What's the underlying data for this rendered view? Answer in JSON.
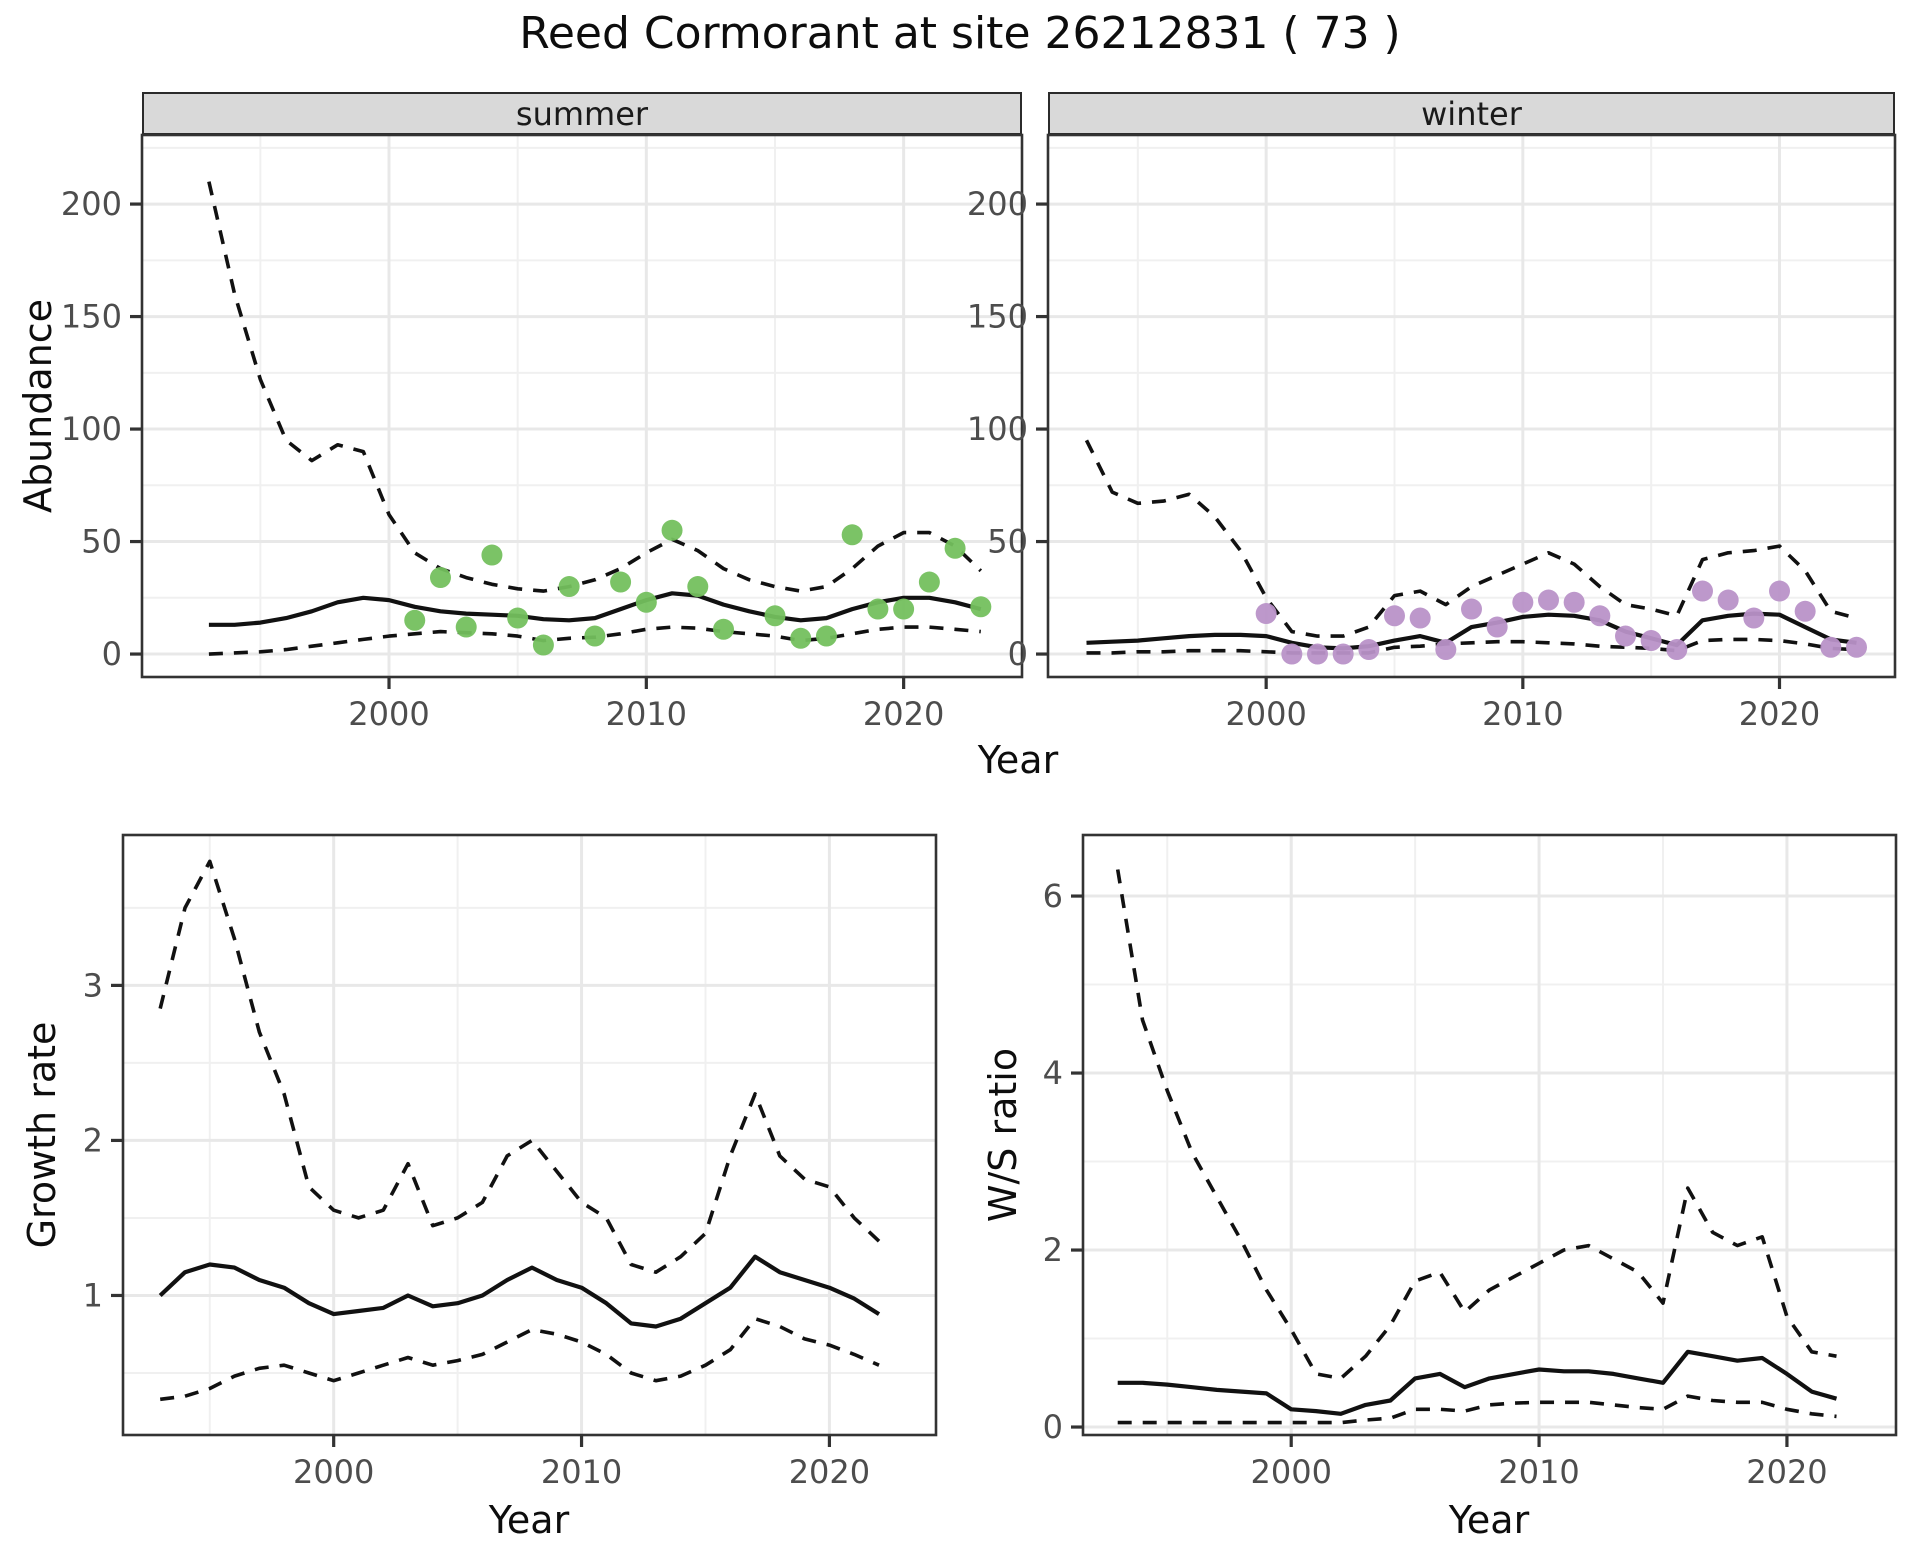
{
  "title": "Reed Cormorant at site 26212831 ( 73 )",
  "colors": {
    "line": "#111111",
    "summer_points": "#74c05e",
    "winter_points": "#b992c8",
    "strip_bg": "#d9d9d9",
    "grid_major": "#e8e8e8",
    "grid_minor": "#f0f0f0",
    "panel_border": "#333333",
    "tick_text": "#4d4d4d"
  },
  "chart_data": [
    {
      "id": "abundance_summer",
      "type": "line",
      "facet": "summer",
      "xlabel": "Year",
      "ylabel": "Abundance",
      "legend": "none",
      "grid": true,
      "xlim": [
        1990.4,
        2024.6
      ],
      "ylim": [
        -10.2,
        230.7
      ],
      "x_ticks": [
        2000,
        2010,
        2020
      ],
      "y_ticks": [
        0,
        50,
        100,
        150,
        200
      ],
      "years": [
        1993,
        1994,
        1995,
        1996,
        1997,
        1998,
        1999,
        2000,
        2001,
        2002,
        2003,
        2004,
        2005,
        2006,
        2007,
        2008,
        2009,
        2010,
        2011,
        2012,
        2013,
        2014,
        2015,
        2016,
        2017,
        2018,
        2019,
        2020,
        2021,
        2022,
        2023
      ],
      "series": [
        {
          "name": "mean",
          "style": "solid",
          "values": [
            13,
            13,
            14,
            16,
            19,
            23,
            25,
            24,
            21,
            19,
            18,
            17.5,
            17,
            15.5,
            15,
            16,
            20,
            24,
            27,
            26,
            22,
            19,
            16.5,
            15,
            16,
            20,
            23,
            25,
            25,
            23,
            20
          ]
        },
        {
          "name": "upper_ci",
          "style": "dashed",
          "values": [
            210,
            160,
            122,
            95,
            86,
            93,
            90,
            62,
            45,
            38,
            34,
            31,
            29,
            28,
            30,
            33,
            38,
            45,
            51,
            46,
            38,
            33,
            30,
            28,
            30,
            38,
            48,
            54,
            54,
            48,
            37
          ]
        },
        {
          "name": "lower_ci",
          "style": "dashed",
          "values": [
            0,
            0.5,
            1,
            2,
            3.5,
            5,
            6.5,
            8,
            9,
            10,
            9.5,
            9,
            8,
            6,
            7,
            7.5,
            9,
            11,
            12,
            11.5,
            10,
            9,
            8,
            6,
            7,
            9,
            11,
            12,
            12,
            11,
            10
          ]
        }
      ],
      "points": {
        "color_key": "summer_points",
        "years": [
          2001,
          2002,
          2003,
          2004,
          2005,
          2006,
          2007,
          2008,
          2009,
          2010,
          2011,
          2012,
          2013,
          2015,
          2016,
          2017,
          2018,
          2019,
          2020,
          2021,
          2022,
          2023
        ],
        "values": [
          15,
          34,
          12,
          44,
          16,
          4,
          30,
          8,
          32,
          23,
          55,
          30,
          11,
          17,
          7,
          8,
          53,
          20,
          20,
          32,
          47,
          21
        ]
      }
    },
    {
      "id": "abundance_winter",
      "type": "line",
      "facet": "winter",
      "xlabel": "Year",
      "ylabel": "Abundance",
      "legend": "none",
      "grid": true,
      "xlim": [
        1991.5,
        2024.5
      ],
      "ylim": [
        -10.2,
        230.7
      ],
      "x_ticks": [
        2000,
        2010,
        2020
      ],
      "y_ticks": [
        0,
        50,
        100,
        150,
        200
      ],
      "years": [
        1993,
        1994,
        1995,
        1996,
        1997,
        1998,
        1999,
        2000,
        2001,
        2002,
        2003,
        2004,
        2005,
        2006,
        2007,
        2008,
        2009,
        2010,
        2011,
        2012,
        2013,
        2014,
        2015,
        2016,
        2017,
        2018,
        2019,
        2020,
        2021,
        2022,
        2023
      ],
      "series": [
        {
          "name": "mean",
          "style": "solid",
          "values": [
            5,
            5.5,
            6,
            7,
            8,
            8.5,
            8.5,
            8,
            5,
            3,
            2.5,
            3.5,
            6,
            8,
            5,
            12,
            14,
            16.5,
            17.5,
            17,
            15,
            10,
            7,
            4,
            15,
            17,
            18,
            17.5,
            12,
            6.5,
            5
          ]
        },
        {
          "name": "upper_ci",
          "style": "dashed",
          "values": [
            95,
            72,
            67,
            68,
            71,
            61,
            46,
            25,
            10,
            8,
            8,
            12,
            26,
            28,
            22,
            30,
            35,
            40,
            45,
            40,
            30,
            22,
            20,
            17,
            42,
            45,
            46,
            48,
            37,
            19,
            16
          ]
        },
        {
          "name": "lower_ci",
          "style": "dashed",
          "values": [
            0.5,
            0.5,
            1,
            1,
            1.5,
            1.5,
            1.5,
            1,
            0.5,
            0.5,
            0.5,
            0.5,
            3,
            3.5,
            4.5,
            5,
            5.5,
            5.5,
            5,
            4.5,
            3.5,
            3,
            2.5,
            1.5,
            6,
            6.5,
            6.5,
            6,
            4.5,
            2.5,
            2
          ]
        }
      ],
      "points": {
        "color_key": "winter_points",
        "years": [
          2000,
          2001,
          2002,
          2003,
          2004,
          2005,
          2006,
          2007,
          2008,
          2009,
          2010,
          2011,
          2012,
          2013,
          2014,
          2015,
          2016,
          2017,
          2018,
          2019,
          2020,
          2021,
          2022,
          2023
        ],
        "values": [
          18,
          0,
          0,
          0,
          2,
          17,
          16,
          2,
          20,
          12,
          23,
          24,
          23,
          17,
          8,
          6,
          2,
          28,
          24,
          16,
          28,
          19,
          3,
          3
        ]
      }
    },
    {
      "id": "growth_rate",
      "type": "line",
      "facet": "",
      "xlabel": "Year",
      "ylabel": "Growth rate",
      "legend": "none",
      "grid": true,
      "xlim": [
        1991.5,
        2024.3
      ],
      "ylim": [
        0.1,
        3.97
      ],
      "x_ticks": [
        2000,
        2010,
        2020
      ],
      "y_ticks": [
        1,
        2,
        3
      ],
      "years": [
        1993,
        1994,
        1995,
        1996,
        1997,
        1998,
        1999,
        2000,
        2001,
        2002,
        2003,
        2004,
        2005,
        2006,
        2007,
        2008,
        2009,
        2010,
        2011,
        2012,
        2013,
        2014,
        2015,
        2016,
        2017,
        2018,
        2019,
        2020,
        2021,
        2022
      ],
      "series": [
        {
          "name": "mean",
          "style": "solid",
          "values": [
            1.0,
            1.15,
            1.2,
            1.18,
            1.1,
            1.05,
            0.95,
            0.88,
            0.9,
            0.92,
            1.0,
            0.93,
            0.95,
            1.0,
            1.1,
            1.18,
            1.1,
            1.05,
            0.95,
            0.82,
            0.8,
            0.85,
            0.95,
            1.05,
            1.25,
            1.15,
            1.1,
            1.05,
            0.98,
            0.88
          ]
        },
        {
          "name": "upper_ci",
          "style": "dashed",
          "values": [
            2.85,
            3.5,
            3.8,
            3.3,
            2.7,
            2.3,
            1.7,
            1.55,
            1.5,
            1.55,
            1.85,
            1.45,
            1.5,
            1.6,
            1.9,
            2.0,
            1.8,
            1.6,
            1.5,
            1.2,
            1.15,
            1.25,
            1.4,
            1.9,
            2.3,
            1.9,
            1.75,
            1.7,
            1.5,
            1.35
          ]
        },
        {
          "name": "lower_ci",
          "style": "dashed",
          "values": [
            0.33,
            0.35,
            0.4,
            0.48,
            0.53,
            0.55,
            0.5,
            0.45,
            0.5,
            0.55,
            0.6,
            0.55,
            0.58,
            0.62,
            0.7,
            0.78,
            0.75,
            0.7,
            0.62,
            0.5,
            0.45,
            0.48,
            0.55,
            0.65,
            0.85,
            0.8,
            0.72,
            0.68,
            0.62,
            0.55
          ]
        }
      ],
      "points": null
    },
    {
      "id": "ws_ratio",
      "type": "line",
      "facet": "",
      "xlabel": "Year",
      "ylabel": "W/S ratio",
      "legend": "none",
      "grid": true,
      "xlim": [
        1991.6,
        2024.4
      ],
      "ylim": [
        -0.09,
        6.69
      ],
      "x_ticks": [
        2000,
        2010,
        2020
      ],
      "y_ticks": [
        0,
        2,
        4,
        6
      ],
      "years": [
        1993,
        1994,
        1995,
        1996,
        1997,
        1998,
        1999,
        2000,
        2001,
        2002,
        2003,
        2004,
        2005,
        2006,
        2007,
        2008,
        2009,
        2010,
        2011,
        2012,
        2013,
        2014,
        2015,
        2016,
        2017,
        2018,
        2019,
        2020,
        2021,
        2022
      ],
      "series": [
        {
          "name": "mean",
          "style": "solid",
          "values": [
            0.5,
            0.5,
            0.48,
            0.45,
            0.42,
            0.4,
            0.38,
            0.2,
            0.18,
            0.15,
            0.25,
            0.3,
            0.55,
            0.6,
            0.45,
            0.55,
            0.6,
            0.65,
            0.63,
            0.63,
            0.6,
            0.55,
            0.5,
            0.85,
            0.8,
            0.75,
            0.78,
            0.6,
            0.4,
            0.32
          ]
        },
        {
          "name": "upper_ci",
          "style": "dashed",
          "values": [
            6.3,
            4.6,
            3.8,
            3.1,
            2.6,
            2.1,
            1.55,
            1.1,
            0.6,
            0.55,
            0.8,
            1.15,
            1.65,
            1.75,
            1.3,
            1.55,
            1.7,
            1.85,
            2.0,
            2.05,
            1.9,
            1.75,
            1.4,
            2.7,
            2.2,
            2.05,
            2.15,
            1.25,
            0.85,
            0.8
          ]
        },
        {
          "name": "lower_ci",
          "style": "dashed",
          "values": [
            0.05,
            0.05,
            0.05,
            0.05,
            0.05,
            0.05,
            0.05,
            0.05,
            0.05,
            0.05,
            0.08,
            0.1,
            0.2,
            0.2,
            0.18,
            0.25,
            0.27,
            0.28,
            0.28,
            0.28,
            0.25,
            0.22,
            0.2,
            0.35,
            0.3,
            0.28,
            0.28,
            0.2,
            0.15,
            0.12
          ]
        }
      ],
      "points": null
    }
  ]
}
